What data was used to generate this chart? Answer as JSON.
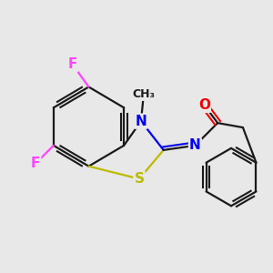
{
  "background_color": "#e8e8e8",
  "bond_color": "#1a1a1a",
  "atom_colors": {
    "F": "#ff44ff",
    "S": "#bbbb00",
    "N": "#0000ee",
    "O": "#ee0000",
    "C": "#1a1a1a"
  },
  "figsize": [
    3.0,
    3.0
  ],
  "dpi": 100
}
